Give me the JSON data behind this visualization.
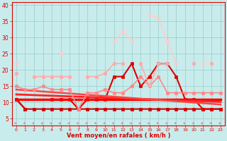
{
  "xlabel": "Vent moyen/en rafales ( km/h )",
  "x": [
    0,
    1,
    2,
    3,
    4,
    5,
    6,
    7,
    8,
    9,
    10,
    11,
    12,
    13,
    14,
    15,
    16,
    17,
    18,
    19,
    20,
    21,
    22,
    23
  ],
  "series": [
    {
      "color": "#cc0000",
      "linewidth": 1.5,
      "markersize": 2.5,
      "marker": "s",
      "data": [
        11,
        8,
        8,
        8,
        8,
        8,
        8,
        8,
        8,
        8,
        8,
        8,
        8,
        8,
        8,
        8,
        8,
        8,
        8,
        8,
        8,
        8,
        8,
        8
      ]
    },
    {
      "color": "#dd0000",
      "linewidth": 1.5,
      "markersize": 2.5,
      "marker": "s",
      "data": [
        11,
        8,
        null,
        null,
        11,
        11,
        11,
        8,
        11,
        11,
        11,
        18,
        18,
        22,
        15,
        18,
        22,
        22,
        18,
        11,
        11,
        8,
        8,
        8
      ]
    },
    {
      "color": "#ff0000",
      "linewidth": 2.5,
      "markersize": 0,
      "marker": null,
      "data": [
        11,
        11,
        11,
        11,
        11,
        11,
        11,
        11,
        11,
        11,
        11,
        11,
        11,
        11,
        11,
        11,
        11,
        11,
        11,
        11,
        11,
        11,
        11,
        11
      ]
    },
    {
      "color": "#ff2222",
      "linewidth": 2.0,
      "markersize": 0,
      "marker": null,
      "data": [
        12.5,
        12.4,
        12.3,
        12.2,
        12.1,
        12.0,
        11.9,
        11.8,
        11.7,
        11.6,
        11.5,
        11.4,
        11.3,
        11.2,
        11.1,
        11.0,
        10.9,
        10.8,
        10.7,
        10.6,
        10.5,
        10.4,
        10.3,
        10.2
      ]
    },
    {
      "color": "#ff4444",
      "linewidth": 1.8,
      "markersize": 0,
      "marker": null,
      "data": [
        14,
        13.8,
        13.6,
        13.4,
        13.2,
        13.0,
        12.8,
        12.6,
        12.4,
        12.2,
        12.0,
        11.8,
        11.6,
        11.4,
        11.2,
        11.0,
        10.8,
        10.6,
        10.4,
        10.2,
        10.0,
        9.8,
        9.6,
        9.4
      ]
    },
    {
      "color": "#ff8888",
      "linewidth": 1.2,
      "markersize": 2.5,
      "marker": "s",
      "data": [
        15,
        14,
        14,
        15,
        14,
        14,
        14,
        8,
        13,
        13,
        14,
        13,
        13,
        15,
        18,
        15,
        18,
        13,
        13,
        13,
        13,
        13,
        13,
        13
      ]
    },
    {
      "color": "#ffaaaa",
      "linewidth": 1.2,
      "markersize": 2.5,
      "marker": "s",
      "data": [
        19,
        null,
        18,
        18,
        18,
        18,
        18,
        null,
        18,
        18,
        19,
        22,
        22,
        null,
        22,
        15,
        22,
        22,
        null,
        null,
        22,
        null,
        22,
        null
      ]
    },
    {
      "color": "#ffcccc",
      "linewidth": 1.2,
      "markersize": 2.5,
      "marker": "s",
      "data": [
        22,
        null,
        null,
        null,
        null,
        25,
        null,
        null,
        null,
        null,
        null,
        29,
        32,
        29,
        null,
        37,
        36,
        29,
        22,
        null,
        null,
        22,
        null,
        null
      ]
    }
  ],
  "arrows": {
    "color": "#ff6666",
    "positions": [
      0,
      1,
      2,
      3,
      4,
      5,
      6,
      7,
      8,
      9,
      10,
      11,
      12,
      13,
      14,
      15,
      16,
      17,
      18,
      19,
      20,
      21,
      22,
      23
    ]
  },
  "background_color": "#c8ecec",
  "grid_color": "#99cccc",
  "text_color": "#dd0000",
  "ylim": [
    3,
    41
  ],
  "yticks": [
    5,
    10,
    15,
    20,
    25,
    30,
    35,
    40
  ],
  "figsize": [
    3.2,
    2.0
  ],
  "dpi": 100
}
